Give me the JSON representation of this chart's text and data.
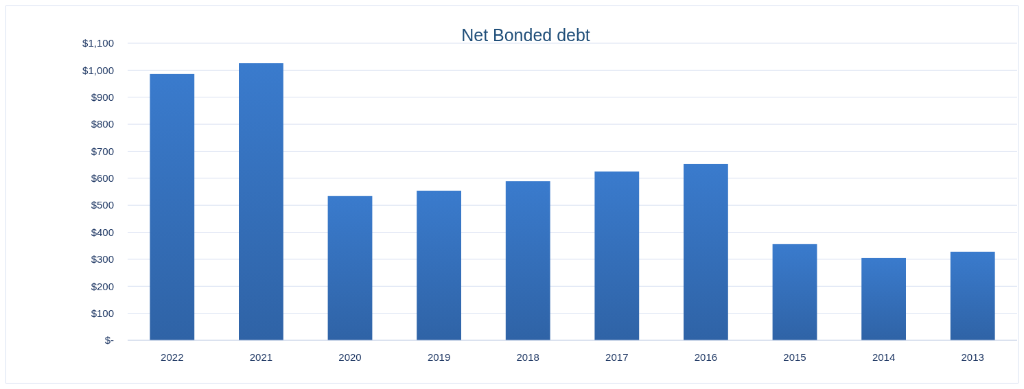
{
  "chart_data": {
    "type": "bar",
    "title": "Net Bonded debt",
    "categories": [
      "2022",
      "2021",
      "2020",
      "2019",
      "2018",
      "2017",
      "2016",
      "2015",
      "2014",
      "2013"
    ],
    "values": [
      986,
      1026,
      534,
      554,
      589,
      625,
      653,
      356,
      305,
      328
    ],
    "color": "#3a7bcd",
    "ylim": [
      0,
      1100
    ],
    "yticks": [
      {
        "value": 0,
        "label": "$-"
      },
      {
        "value": 100,
        "label": "$100"
      },
      {
        "value": 200,
        "label": "$200"
      },
      {
        "value": 300,
        "label": "$300"
      },
      {
        "value": 400,
        "label": "$400"
      },
      {
        "value": 500,
        "label": "$500"
      },
      {
        "value": 600,
        "label": "$600"
      },
      {
        "value": 700,
        "label": "$700"
      },
      {
        "value": 800,
        "label": "$800"
      },
      {
        "value": 900,
        "label": "$900"
      },
      {
        "value": 1000,
        "label": "$1,000"
      },
      {
        "value": 1100,
        "label": "$1,100"
      }
    ],
    "grid": "y"
  }
}
